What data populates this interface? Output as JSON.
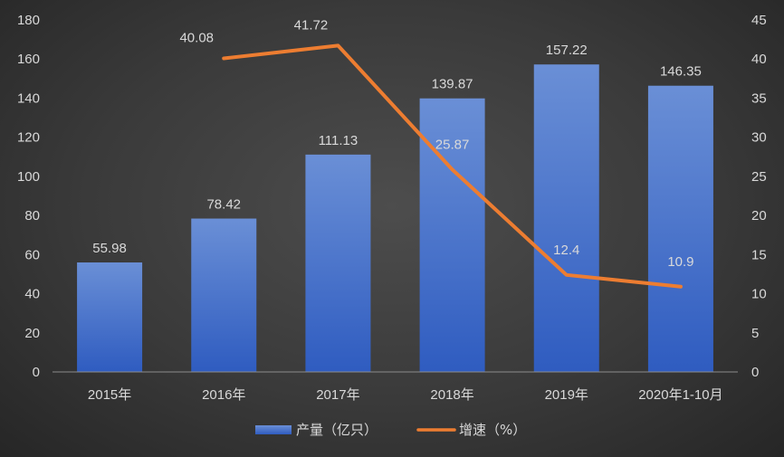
{
  "chart_data": {
    "type": "bar",
    "categories": [
      "2015年",
      "2016年",
      "2017年",
      "2018年",
      "2019年",
      "2020年1-10月"
    ],
    "series": [
      {
        "name": "产量（亿只）",
        "type": "bar",
        "axis": "left",
        "values": [
          55.98,
          78.42,
          111.13,
          139.87,
          157.22,
          146.35
        ],
        "labels": [
          "55.98",
          "78.42",
          "111.13",
          "139.87",
          "157.22",
          "146.35"
        ],
        "color": "#4472c4"
      },
      {
        "name": "增速（%）",
        "type": "line",
        "axis": "right",
        "values": [
          null,
          40.08,
          41.72,
          25.87,
          12.4,
          10.9
        ],
        "labels": [
          "",
          "40.08",
          "41.72",
          "25.87",
          "12.4",
          "10.9"
        ],
        "color": "#ed7d31"
      }
    ],
    "y_left": {
      "min": 0,
      "max": 180,
      "step": 20
    },
    "y_right": {
      "min": 0,
      "max": 45,
      "step": 5
    },
    "grid": false,
    "legend_position": "bottom"
  }
}
